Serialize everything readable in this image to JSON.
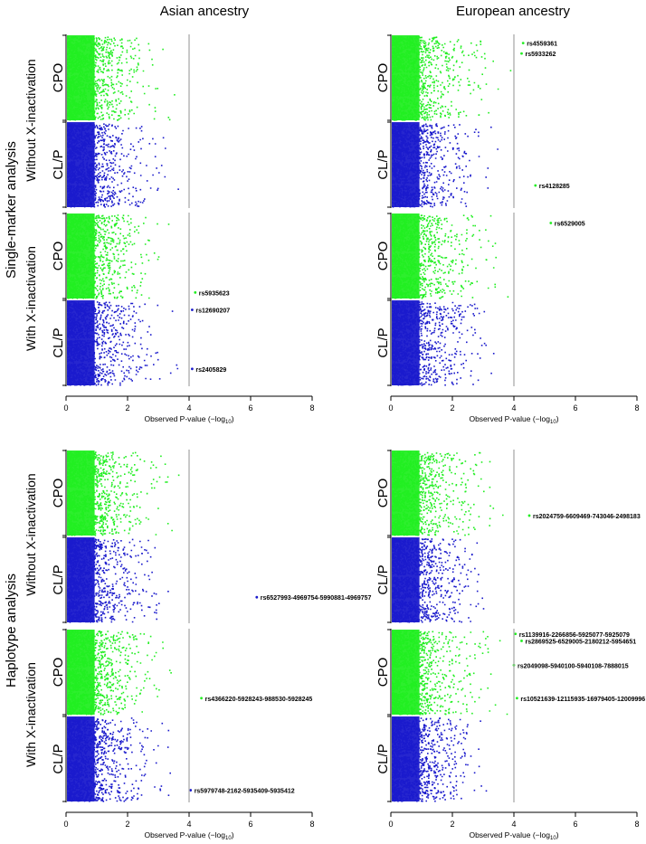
{
  "figure": {
    "col_titles": [
      "Asian ancestry",
      "European ancestry"
    ],
    "section_labels": [
      "Single-marker analysis",
      "Haplotype analysis"
    ],
    "row_labels": [
      "Without X-inactivation",
      "With X-inactivation"
    ],
    "group_labels": [
      "CPO",
      "CL/P"
    ],
    "xlabel_main": "Observed P-value (−log",
    "xlabel_sub": "10",
    "xlabel_close": ")",
    "colors": {
      "CPO": "#22ee22",
      "CL/P": "#1a1acc",
      "threshold": "#aaaaaa"
    }
  },
  "chart_data": [
    {
      "type": "scatter",
      "title": "Asian ancestry",
      "row_label": "Without X-inactivation",
      "section": "Single-marker analysis",
      "xlabel": "Observed P-value (−log10)",
      "xlim": [
        0,
        8
      ],
      "xticks": [
        "0",
        "2",
        "4",
        "6",
        "8"
      ],
      "threshold": 4,
      "series": [
        {
          "name": "CPO",
          "color": "#22ee22",
          "max": 3.5,
          "points": []
        },
        {
          "name": "CL/P",
          "color": "#1a1acc",
          "max": 3.7,
          "points": []
        }
      ]
    },
    {
      "type": "scatter",
      "title": "European ancestry",
      "row_label": "Without X-inactivation",
      "section": "Single-marker analysis",
      "xlabel": "Observed P-value (−log10)",
      "xlim": [
        0,
        8
      ],
      "xticks": [
        "0",
        "2",
        "4",
        "6",
        "8"
      ],
      "threshold": 4,
      "series": [
        {
          "name": "CPO",
          "color": "#22ee22",
          "max": 4.1,
          "points": [
            {
              "x": 4.3,
              "y": 0.05,
              "label": "rs4559361"
            },
            {
              "x": 4.25,
              "y": 0.11,
              "label": "rs5933262"
            },
            {
              "x": 4.7,
              "y": 0.87,
              "label": "rs4128285"
            }
          ]
        },
        {
          "name": "CL/P",
          "color": "#1a1acc",
          "max": 3.6,
          "points": []
        }
      ]
    },
    {
      "type": "scatter",
      "title": "Asian ancestry",
      "row_label": "With X-inactivation",
      "section": "Single-marker analysis",
      "xlabel": "Observed P-value (−log10)",
      "xlim": [
        0,
        8
      ],
      "xticks": [
        "0",
        "2",
        "4",
        "6",
        "8"
      ],
      "threshold": 4,
      "series": [
        {
          "name": "CPO",
          "color": "#22ee22",
          "max": 3.6,
          "points": [
            {
              "x": 4.2,
              "y": 0.46,
              "label": "rs5935623"
            }
          ]
        },
        {
          "name": "CL/P",
          "color": "#1a1acc",
          "max": 3.9,
          "points": [
            {
              "x": 4.1,
              "y": 0.56,
              "label": "rs12690207"
            },
            {
              "x": 4.1,
              "y": 0.9,
              "label": "rs2405829"
            }
          ]
        }
      ]
    },
    {
      "type": "scatter",
      "title": "European ancestry",
      "row_label": "With X-inactivation",
      "section": "Single-marker analysis",
      "xlabel": "Observed P-value (−log10)",
      "xlim": [
        0,
        8
      ],
      "xticks": [
        "0",
        "2",
        "4",
        "6",
        "8"
      ],
      "threshold": 4,
      "series": [
        {
          "name": "CPO",
          "color": "#22ee22",
          "max": 3.8,
          "points": [
            {
              "x": 5.2,
              "y": 0.06,
              "label": "rs6529005"
            }
          ]
        },
        {
          "name": "CL/P",
          "color": "#1a1acc",
          "max": 3.4,
          "points": []
        }
      ]
    },
    {
      "type": "scatter",
      "title": "Asian ancestry",
      "row_label": "Without X-inactivation",
      "section": "Haplotype analysis",
      "xlabel": "Observed P-value (−log10)",
      "xlim": [
        0,
        8
      ],
      "xticks": [
        "0",
        "2",
        "4",
        "6",
        "8"
      ],
      "threshold": 4,
      "series": [
        {
          "name": "CPO",
          "color": "#22ee22",
          "max": 3.8,
          "points": []
        },
        {
          "name": "CL/P",
          "color": "#1a1acc",
          "max": 3.9,
          "points": [
            {
              "x": 6.2,
              "y": 0.85,
              "label": "rs6527993-4969754-5990881-4969757"
            }
          ]
        }
      ]
    },
    {
      "type": "scatter",
      "title": "European ancestry",
      "row_label": "Without X-inactivation",
      "section": "Haplotype analysis",
      "xlabel": "Observed P-value (−log10)",
      "xlim": [
        0,
        8
      ],
      "xticks": [
        "0",
        "2",
        "4",
        "6",
        "8"
      ],
      "threshold": 4,
      "series": [
        {
          "name": "CPO",
          "color": "#22ee22",
          "max": 3.9,
          "points": [
            {
              "x": 4.5,
              "y": 0.38,
              "label": "rs2024759-6609469-743046-2498183"
            }
          ]
        },
        {
          "name": "CL/P",
          "color": "#1a1acc",
          "max": 3.5,
          "points": []
        }
      ]
    },
    {
      "type": "scatter",
      "title": "Asian ancestry",
      "row_label": "With X-inactivation",
      "section": "Haplotype analysis",
      "xlabel": "Observed P-value (−log10)",
      "xlim": [
        0,
        8
      ],
      "xticks": [
        "0",
        "2",
        "4",
        "6",
        "8"
      ],
      "threshold": 4,
      "series": [
        {
          "name": "CPO",
          "color": "#22ee22",
          "max": 3.5,
          "points": [
            {
              "x": 4.4,
              "y": 0.4,
              "label": "rs4366220-5928243-988530-5928245"
            }
          ]
        },
        {
          "name": "CL/P",
          "color": "#1a1acc",
          "max": 3.8,
          "points": [
            {
              "x": 4.05,
              "y": 0.93,
              "label": "rs5979748-2162-5935409-5935412"
            }
          ]
        }
      ]
    },
    {
      "type": "scatter",
      "title": "European ancestry",
      "row_label": "With X-inactivation",
      "section": "Haplotype analysis",
      "xlabel": "Observed P-value (−log10)",
      "xlim": [
        0,
        8
      ],
      "xticks": [
        "0",
        "2",
        "4",
        "6",
        "8"
      ],
      "threshold": 4,
      "series": [
        {
          "name": "CPO",
          "color": "#22ee22",
          "max": 3.9,
          "points": [
            {
              "x": 4.05,
              "y": 0.03,
              "label": "rs1139916-2266856-5925077-5925079"
            },
            {
              "x": 4.25,
              "y": 0.07,
              "label": "rs2869525-6529005-2180212-5954651"
            },
            {
              "x": 4.0,
              "y": 0.21,
              "label": "rs2049098-5940100-5940108-7888015"
            },
            {
              "x": 4.1,
              "y": 0.4,
              "label": "rs10521639-12115935-16979405-12009996"
            }
          ]
        },
        {
          "name": "CL/P",
          "color": "#1a1acc",
          "max": 3.4,
          "points": []
        }
      ]
    }
  ]
}
